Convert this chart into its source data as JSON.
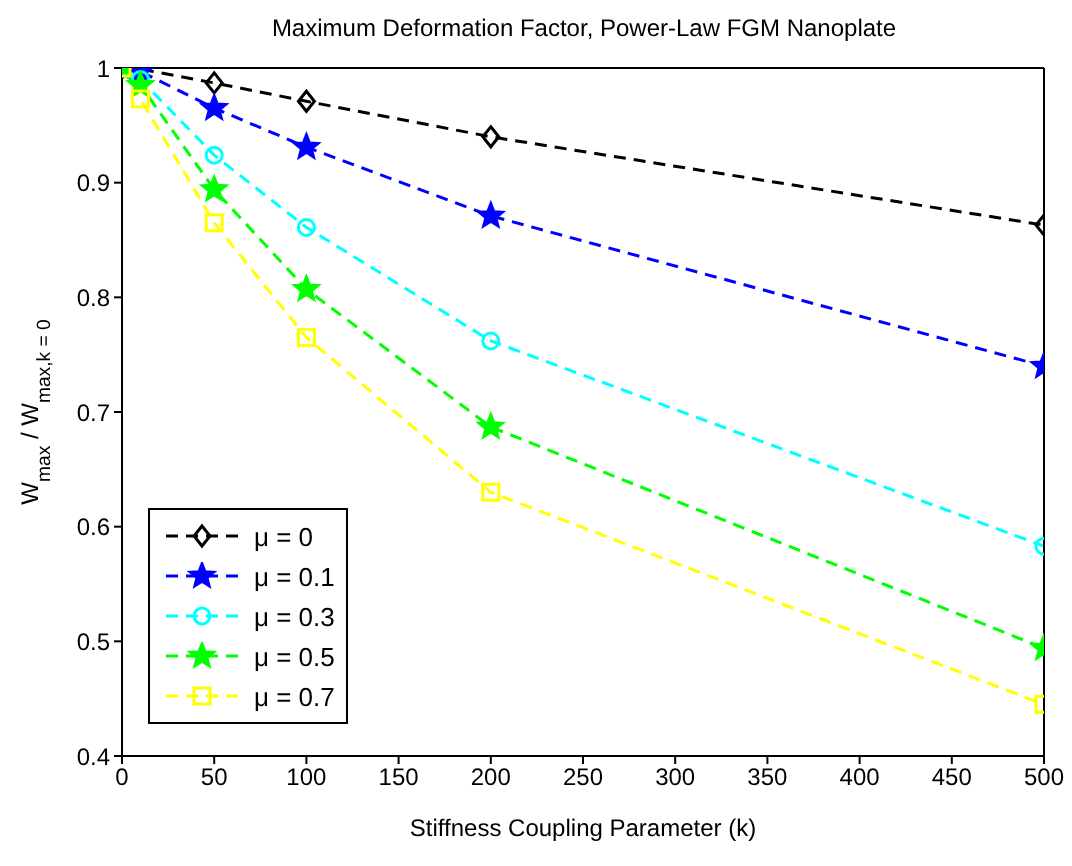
{
  "chart_data": {
    "type": "line",
    "title": "Maximum Deformation Factor, Power-Law FGM Nanoplate",
    "xlabel": "Stiffness Coupling Parameter (k)",
    "ylabel": "W$_{max}$ / W$_{max,k = 0}$",
    "x": [
      0,
      10,
      50,
      100,
      200,
      500
    ],
    "series": [
      {
        "name": "μ = 0",
        "color": "#000000",
        "marker": "diamond",
        "values": [
          1,
          0.999,
          0.987,
          0.971,
          0.94,
          0.863
        ]
      },
      {
        "name": "μ = 0.1",
        "color": "#0000ff",
        "marker": "star",
        "values": [
          1,
          0.997,
          0.965,
          0.931,
          0.871,
          0.74
        ]
      },
      {
        "name": "μ = 0.3",
        "color": "#00ffff",
        "marker": "circle",
        "values": [
          1,
          0.99,
          0.924,
          0.861,
          0.762,
          0.583
        ]
      },
      {
        "name": "μ = 0.5",
        "color": "#00ff00",
        "marker": "star",
        "values": [
          1,
          0.985,
          0.894,
          0.807,
          0.687,
          0.494
        ]
      },
      {
        "name": "μ = 0.7",
        "color": "#ffff00",
        "marker": "square",
        "values": [
          1,
          0.973,
          0.865,
          0.765,
          0.63,
          0.445
        ]
      }
    ],
    "xlim": [
      0,
      500
    ],
    "xticks": [
      0,
      50,
      100,
      150,
      200,
      250,
      300,
      350,
      400,
      450,
      500
    ],
    "ylim": [
      0.4,
      1
    ],
    "yticks": [
      0.4,
      0.5,
      0.6,
      0.7,
      0.8,
      0.9,
      1
    ],
    "grid": false,
    "legend": "bottom left",
    "line_style": "dashed"
  }
}
